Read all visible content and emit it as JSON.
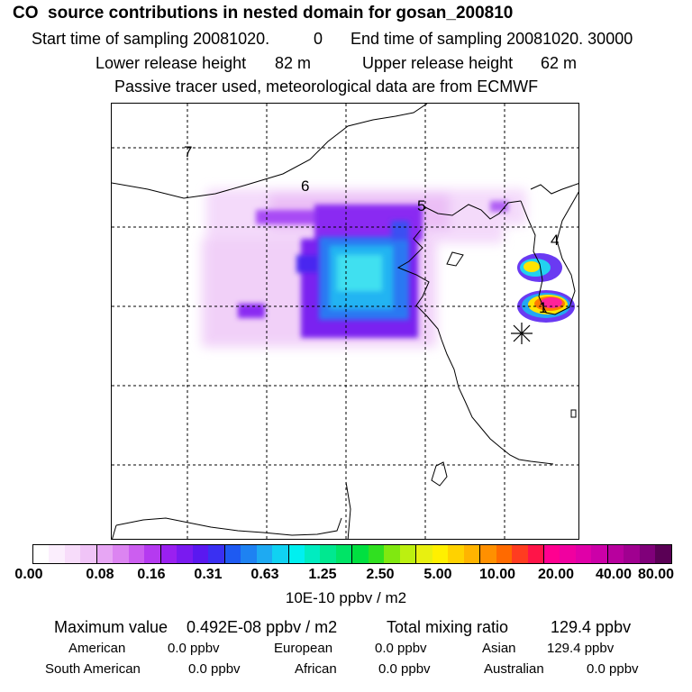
{
  "header": {
    "title": "CO  source contributions in nested domain for gosan_200810",
    "start_label": "Start time of sampling 20081020.",
    "start_time": "0",
    "end_label": "End time of sampling 20081020. 30000",
    "lower_label": "Lower release height",
    "lower_value": "82 m",
    "upper_label": "Upper release height",
    "upper_value": "62 m",
    "tracer_note": "Passive tracer used, meteorological data are from ECMWF"
  },
  "map": {
    "region_labels": [
      "7",
      "6",
      "5",
      "4",
      "1"
    ],
    "receptor_marker": "gosan-receptor",
    "plume_color_main": "#9933ff",
    "plume_color_core": "#33ddee",
    "hotspot_color": "#ff2299"
  },
  "colorbar": {
    "colors": [
      "#ffffff",
      "#fbeefd",
      "#f7dcfa",
      "#f0c4f7",
      "#e7a6f4",
      "#dc84f1",
      "#cc5ef0",
      "#b53af0",
      "#9a20f0",
      "#7a1af0",
      "#5a18f0",
      "#3a30f2",
      "#1e5af2",
      "#1e82f2",
      "#1eaaf2",
      "#10d2f2",
      "#00f0f0",
      "#00ecc0",
      "#00e890",
      "#00e466",
      "#00e040",
      "#30e020",
      "#80e810",
      "#bcf010",
      "#e8f010",
      "#fff000",
      "#ffd200",
      "#ffb400",
      "#ff9000",
      "#ff6a00",
      "#ff3c20",
      "#ff1448",
      "#ff0090",
      "#f000a0",
      "#e000a8",
      "#cc00a8",
      "#b8009e",
      "#a00090",
      "#80007a",
      "#5a0055"
    ],
    "tick_labels": [
      "0.00",
      "0.08",
      "0.16",
      "0.31",
      "0.63",
      "1.25",
      "2.50",
      "5.00",
      "10.00",
      "20.00",
      "40.00",
      "80.00"
    ],
    "units": "10E-10 ppbv / m2"
  },
  "summary": {
    "max_label": "Maximum value",
    "max_value": "0.492E-08 ppbv / m2",
    "total_label": "Total mixing ratio",
    "total_value": "129.4 ppbv",
    "american_label": "American",
    "american_value": "0.0 ppbv",
    "european_label": "European",
    "european_value": "0.0 ppbv",
    "asian_label": "Asian",
    "asian_value": "129.4 ppbv",
    "south_american_label": "South American",
    "south_american_value": "0.0 ppbv",
    "african_label": "African",
    "african_value": "0.0 ppbv",
    "australian_label": "Australian",
    "australian_value": "0.0 ppbv"
  }
}
